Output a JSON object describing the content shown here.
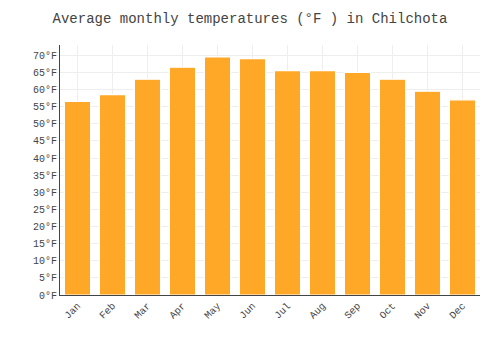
{
  "chart_data": {
    "type": "bar",
    "title": "Average monthly temperatures (°F ) in Chilchota",
    "categories": [
      "Jan",
      "Feb",
      "Mar",
      "Apr",
      "May",
      "Jun",
      "Jul",
      "Aug",
      "Sep",
      "Oct",
      "Nov",
      "Dec"
    ],
    "values": [
      56.5,
      58.5,
      63.0,
      66.5,
      69.5,
      69.0,
      65.5,
      65.5,
      65.0,
      63.0,
      59.5,
      57.0
    ],
    "color": "#FFA726",
    "ylim": [
      0,
      73
    ],
    "yticks": [
      {
        "value": 0,
        "label": "0°F"
      },
      {
        "value": 5,
        "label": "5°F"
      },
      {
        "value": 10,
        "label": "10°F"
      },
      {
        "value": 15,
        "label": "15°F"
      },
      {
        "value": 20,
        "label": "20°F"
      },
      {
        "value": 25,
        "label": "25°F"
      },
      {
        "value": 30,
        "label": "30°F"
      },
      {
        "value": 35,
        "label": "35°F"
      },
      {
        "value": 40,
        "label": "40°F"
      },
      {
        "value": 45,
        "label": "45°F"
      },
      {
        "value": 50,
        "label": "50°F"
      },
      {
        "value": 55,
        "label": "55°F"
      },
      {
        "value": 60,
        "label": "60°F"
      },
      {
        "value": 65,
        "label": "65°F"
      },
      {
        "value": 70,
        "label": "70°F"
      }
    ],
    "grid": true
  }
}
